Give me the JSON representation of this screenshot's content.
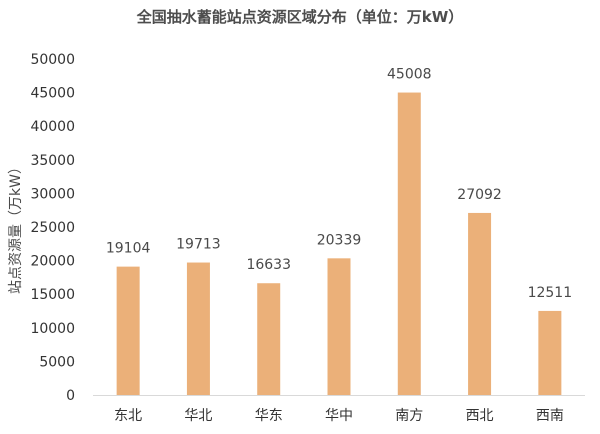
{
  "chart_data": {
    "type": "bar",
    "title": "全国抽水蓄能站点资源区域分布（单位：万kW）",
    "xlabel": "",
    "ylabel": "站点资源量（万kW）",
    "categories": [
      "东北",
      "华北",
      "华东",
      "华中",
      "南方",
      "西北",
      "西南"
    ],
    "values": [
      19104,
      19713,
      16633,
      20339,
      45008,
      27092,
      12511
    ],
    "data_labels": [
      "19104",
      "19713",
      "16633",
      "20339",
      "45008",
      "27092",
      "12511"
    ],
    "ylim": [
      0,
      50000
    ],
    "yticks": [
      0,
      5000,
      10000,
      15000,
      20000,
      25000,
      30000,
      35000,
      40000,
      45000,
      50000
    ],
    "grid": false,
    "legend": "none",
    "bar_color": "#EBB079",
    "axis_color": "#D9D9D9"
  }
}
